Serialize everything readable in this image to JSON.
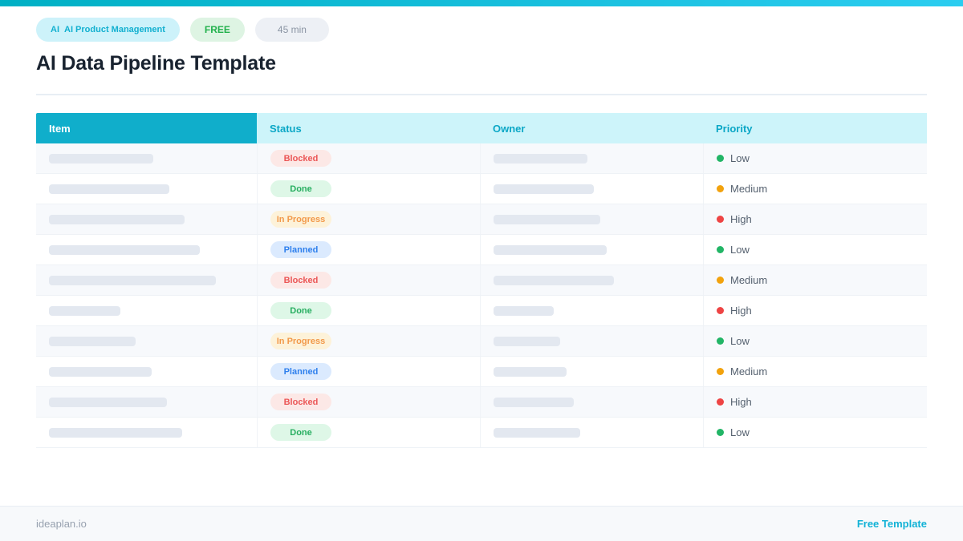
{
  "page": {
    "badges": {
      "category_prefix": "AI",
      "category_label": "AI Product Management",
      "free_label": "FREE",
      "duration_label": "45 min"
    },
    "title": "AI Data Pipeline Template"
  },
  "table": {
    "columns": [
      "Item",
      "Status",
      "Owner",
      "Priority"
    ],
    "rows": [
      {
        "item_bar": 130,
        "status": "Blocked",
        "owner_bar": 117,
        "priority": "Low"
      },
      {
        "item_bar": 150,
        "status": "Done",
        "owner_bar": 125,
        "priority": "Medium"
      },
      {
        "item_bar": 169,
        "status": "In Progress",
        "owner_bar": 133,
        "priority": "High"
      },
      {
        "item_bar": 188,
        "status": "Planned",
        "owner_bar": 141,
        "priority": "Low"
      },
      {
        "item_bar": 208,
        "status": "Blocked",
        "owner_bar": 150,
        "priority": "Medium"
      },
      {
        "item_bar": 89,
        "status": "Done",
        "owner_bar": 75,
        "priority": "High"
      },
      {
        "item_bar": 108,
        "status": "In Progress",
        "owner_bar": 83,
        "priority": "Low"
      },
      {
        "item_bar": 128,
        "status": "Planned",
        "owner_bar": 91,
        "priority": "Medium"
      },
      {
        "item_bar": 147,
        "status": "Blocked",
        "owner_bar": 100,
        "priority": "High"
      },
      {
        "item_bar": 166,
        "status": "Done",
        "owner_bar": 108,
        "priority": "Low"
      }
    ],
    "status_styles": {
      "Blocked": {
        "bg": "#fce8e6",
        "color": "#eb5757"
      },
      "Done": {
        "bg": "#def7e7",
        "color": "#27ae60"
      },
      "In Progress": {
        "bg": "#fdf2d9",
        "color": "#f2994a"
      },
      "Planned": {
        "bg": "#dbeafe",
        "color": "#2f80ed"
      }
    },
    "priority_colors": {
      "Low": "#22b566",
      "Medium": "#f2a20d",
      "High": "#ee4444"
    }
  },
  "footer": {
    "site": "ideaplan.io",
    "link": "Free Template"
  },
  "colors": {
    "brand_accent": "#12b0d0",
    "header_dark": "#10aecb",
    "header_light_bg": "#cdf4fa",
    "header_light_text": "#0ba7c6",
    "topbar_gradient_start": "#00b0c4",
    "topbar_gradient_end": "#2bcdf0",
    "title_text": "#18222f",
    "skeleton": "#e3e8f0"
  }
}
